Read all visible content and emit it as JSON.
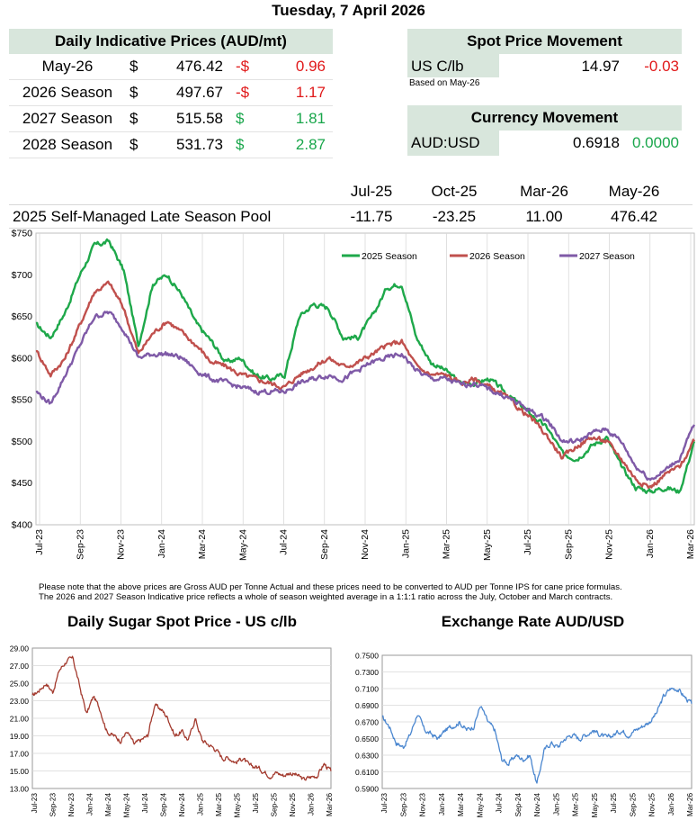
{
  "date": "Tuesday, 7 April 2026",
  "daily_prices": {
    "title": "Daily Indicative Prices (AUD/mt)",
    "rows": [
      {
        "label": "May-26",
        "currency": "$",
        "price": "476.42",
        "change_sign": "-$",
        "change": "0.96",
        "direction": "down"
      },
      {
        "label": "2026 Season",
        "currency": "$",
        "price": "497.67",
        "change_sign": "-$",
        "change": "1.17",
        "direction": "down"
      },
      {
        "label": "2027 Season",
        "currency": "$",
        "price": "515.58",
        "change_sign": "$",
        "change": "1.81",
        "direction": "up"
      },
      {
        "label": "2028 Season",
        "currency": "$",
        "price": "531.73",
        "change_sign": "$",
        "change": "2.87",
        "direction": "up"
      }
    ]
  },
  "spot": {
    "title": "Spot Price Movement",
    "label": "US C/lb",
    "value": "14.97",
    "change": "-0.03",
    "note": "Based on May-26"
  },
  "currency": {
    "title": "Currency Movement",
    "label": "AUD:USD",
    "value": "0.6918",
    "change": "0.0000"
  },
  "pool": {
    "headers": [
      "Jul-25",
      "Oct-25",
      "Mar-26",
      "May-26"
    ],
    "label": "2025 Self-Managed Late Season Pool",
    "values": [
      "-11.75",
      "-23.25",
      "11.00",
      "476.42"
    ]
  },
  "notes": {
    "line1": "Please note that the above prices are Gross AUD per Tonne Actual and these prices need to be converted to AUD per Tonne IPS for cane price formulas.",
    "line2": "The 2026 and 2027 Season Indicative price reflects a whole of season weighted average in a 1:1:1 ratio across the July, October and March contracts."
  },
  "colors": {
    "header_bg": "#d8e6dc",
    "negative": "#e0191a",
    "positive": "#19a64b",
    "series_2025": "#1ea84a",
    "series_2026": "#c0504d",
    "series_2027": "#7f5aa7",
    "sugar_line": "#a33a2e",
    "fx_line": "#4a86cf"
  },
  "chart_data": [
    {
      "type": "line",
      "title": "",
      "ylim": [
        400,
        750
      ],
      "yticks": [
        "$400",
        "$450",
        "$500",
        "$550",
        "$600",
        "$650",
        "$700",
        "$750"
      ],
      "x_tick_labels": [
        "Jul-23",
        "Sep-23",
        "Nov-23",
        "Jan-24",
        "Mar-24",
        "May-24",
        "Jul-24",
        "Sep-24",
        "Nov-24",
        "Jan-25",
        "Mar-25",
        "May-25",
        "Jul-25",
        "Sep-25",
        "Nov-25",
        "Jan-26",
        "Mar-26"
      ],
      "legend": [
        "2025 Season",
        "2026 Season",
        "2027 Season"
      ],
      "legend_position": "top-right",
      "series": [
        {
          "name": "2025 Season",
          "values": [
            640,
            625,
            655,
            700,
            735,
            740,
            705,
            615,
            690,
            700,
            675,
            640,
            620,
            595,
            600,
            580,
            575,
            580,
            650,
            665,
            660,
            625,
            625,
            650,
            685,
            690,
            625,
            595,
            585,
            570,
            570,
            575,
            560,
            545,
            530,
            515,
            485,
            480,
            495,
            505,
            470,
            445,
            440,
            445,
            440,
            500
          ]
        },
        {
          "name": "2026 Season",
          "values": [
            610,
            580,
            600,
            640,
            680,
            690,
            660,
            605,
            630,
            645,
            630,
            615,
            595,
            590,
            580,
            575,
            570,
            565,
            580,
            590,
            600,
            590,
            595,
            605,
            615,
            620,
            590,
            580,
            580,
            570,
            575,
            565,
            555,
            540,
            525,
            505,
            480,
            495,
            505,
            500,
            480,
            455,
            445,
            460,
            470,
            500
          ]
        },
        {
          "name": "2027 Season",
          "values": [
            560,
            545,
            580,
            615,
            650,
            655,
            635,
            600,
            605,
            605,
            600,
            585,
            575,
            570,
            565,
            560,
            560,
            560,
            570,
            575,
            580,
            575,
            585,
            595,
            600,
            605,
            585,
            575,
            575,
            568,
            570,
            562,
            555,
            545,
            535,
            525,
            500,
            500,
            510,
            515,
            500,
            470,
            455,
            465,
            480,
            520
          ]
        }
      ]
    },
    {
      "type": "line",
      "title": "Daily Sugar Spot Price - US c/lb",
      "ylim": [
        13,
        29
      ],
      "yticks": [
        "13.00",
        "15.00",
        "17.00",
        "19.00",
        "21.00",
        "23.00",
        "25.00",
        "27.00",
        "29.00"
      ],
      "x_tick_labels": [
        "Jul-23",
        "Sep-23",
        "Nov-23",
        "Jan-24",
        "Mar-24",
        "May-24",
        "Jul-24",
        "Sep-24",
        "Nov-24",
        "Jan-25",
        "Mar-25",
        "May-25",
        "Jul-25",
        "Sep-25",
        "Nov-25",
        "Jan-26",
        "Mar-26"
      ],
      "series": [
        {
          "name": "Sugar spot",
          "values": [
            23.5,
            24.2,
            25.0,
            24.0,
            26.5,
            27.5,
            27.8,
            24.5,
            21.5,
            23.5,
            22.0,
            19.5,
            19.0,
            18.5,
            19.5,
            18.0,
            18.5,
            19.0,
            22.5,
            22.0,
            21.0,
            19.0,
            19.5,
            18.5,
            21.0,
            18.5,
            18.0,
            17.5,
            16.5,
            16.5,
            16.0,
            16.5,
            15.5,
            15.5,
            15.0,
            14.5,
            14.8,
            14.5,
            14.8,
            14.5,
            14.0,
            14.3,
            14.5,
            15.8,
            14.97
          ]
        }
      ]
    },
    {
      "type": "line",
      "title": "Exchange Rate AUD/USD",
      "ylim": [
        0.59,
        0.75
      ],
      "yticks": [
        "0.5900",
        "0.6100",
        "0.6300",
        "0.6500",
        "0.6700",
        "0.6900",
        "0.7100",
        "0.7300",
        "0.7500"
      ],
      "x_tick_labels": [
        "Jul-23",
        "Sep-23",
        "Nov-23",
        "Jan-24",
        "Mar-24",
        "May-24",
        "Jul-24",
        "Sep-24",
        "Nov-24",
        "Jan-25",
        "Mar-25",
        "May-25",
        "Jul-25",
        "Sep-25",
        "Nov-25",
        "Jan-26",
        "Mar-26"
      ],
      "series": [
        {
          "name": "AUD/USD",
          "values": [
            0.675,
            0.665,
            0.645,
            0.64,
            0.655,
            0.68,
            0.66,
            0.655,
            0.65,
            0.66,
            0.665,
            0.67,
            0.66,
            0.665,
            0.69,
            0.67,
            0.66,
            0.625,
            0.62,
            0.63,
            0.625,
            0.63,
            0.595,
            0.635,
            0.645,
            0.64,
            0.65,
            0.655,
            0.65,
            0.655,
            0.66,
            0.655,
            0.65,
            0.655,
            0.66,
            0.655,
            0.66,
            0.665,
            0.67,
            0.68,
            0.7,
            0.71,
            0.71,
            0.7,
            0.6918
          ]
        }
      ]
    }
  ]
}
